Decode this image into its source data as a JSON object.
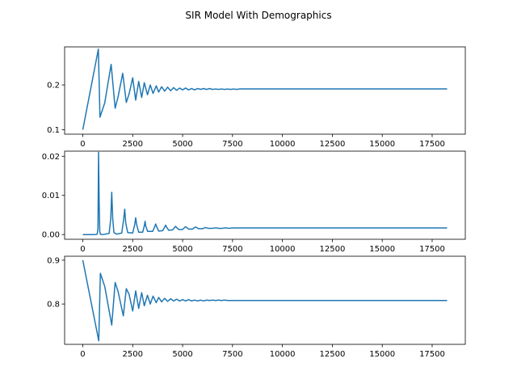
{
  "chart_data": {
    "title": "SIR Model With Demographics",
    "type": "line",
    "line_color": "#1f77b4",
    "panels": [
      {
        "type": "line",
        "series_label": "",
        "ylim": [
          0.09,
          0.285
        ],
        "xlim": [
          -910,
          19160
        ],
        "yticks": [
          0.1,
          0.2
        ],
        "ytick_labels": [
          "0.1",
          "0.2"
        ],
        "xticks": [
          0,
          2500,
          5000,
          7500,
          10000,
          12500,
          15000,
          17500
        ],
        "xtick_labels": [
          "0",
          "2500",
          "5000",
          "7500",
          "10000",
          "12500",
          "15000",
          "17500"
        ],
        "x": [
          0,
          780,
          860,
          1100,
          1420,
          1620,
          1760,
          2000,
          2180,
          2320,
          2500,
          2650,
          2800,
          2950,
          3080,
          3240,
          3380,
          3520,
          3680,
          3800,
          3950,
          4100,
          4250,
          4400,
          4550,
          4700,
          4850,
          5000,
          5150,
          5300,
          5450,
          5600,
          5750,
          5900,
          6050,
          6200,
          6350,
          6500,
          6650,
          6800,
          6950,
          7100,
          7250,
          7400,
          7550,
          7700,
          7850,
          8000,
          8200,
          8500,
          9000,
          10000,
          12500,
          15000,
          18250
        ],
        "y": [
          0.1,
          0.28,
          0.128,
          0.16,
          0.246,
          0.148,
          0.172,
          0.226,
          0.161,
          0.18,
          0.216,
          0.166,
          0.208,
          0.172,
          0.205,
          0.178,
          0.2,
          0.181,
          0.198,
          0.184,
          0.196,
          0.186,
          0.195,
          0.187,
          0.194,
          0.188,
          0.193,
          0.189,
          0.193,
          0.189,
          0.192,
          0.189,
          0.192,
          0.19,
          0.192,
          0.19,
          0.192,
          0.19,
          0.191,
          0.19,
          0.191,
          0.19,
          0.191,
          0.19,
          0.191,
          0.19,
          0.191,
          0.191,
          0.191,
          0.191,
          0.191,
          0.191,
          0.191,
          0.191,
          0.191
        ]
      },
      {
        "type": "line",
        "series_label": "",
        "ylim": [
          -0.0012,
          0.0213
        ],
        "xlim": [
          -910,
          19160
        ],
        "yticks": [
          0.0,
          0.01,
          0.02
        ],
        "ytick_labels": [
          "0.00",
          "0.01",
          "0.02"
        ],
        "xticks": [
          0,
          2500,
          5000,
          7500,
          10000,
          12500,
          15000,
          17500
        ],
        "xtick_labels": [
          "0",
          "2500",
          "5000",
          "7500",
          "10000",
          "12500",
          "15000",
          "17500"
        ],
        "x": [
          0,
          600,
          720,
          760,
          790,
          820,
          850,
          880,
          1000,
          1320,
          1400,
          1450,
          1500,
          1560,
          1700,
          1950,
          2050,
          2100,
          2150,
          2250,
          2500,
          2600,
          2650,
          2700,
          2800,
          3000,
          3080,
          3120,
          3150,
          3250,
          3500,
          3600,
          3650,
          3700,
          3800,
          4000,
          4100,
          4150,
          4200,
          4300,
          4500,
          4600,
          4650,
          4700,
          4800,
          5000,
          5100,
          5150,
          5200,
          5300,
          5500,
          5600,
          5650,
          5700,
          5800,
          6000,
          6100,
          6150,
          6200,
          6300,
          6500,
          6600,
          6700,
          6800,
          7000,
          7100,
          7200,
          7300,
          7500,
          8000,
          9000,
          10000,
          12500,
          15000,
          18250
        ],
        "y": [
          0.0,
          0.0,
          0.0001,
          0.0015,
          0.021,
          0.008,
          0.0008,
          0.0001,
          0.0,
          0.0003,
          0.004,
          0.0108,
          0.004,
          0.0005,
          0.0001,
          0.0004,
          0.004,
          0.0065,
          0.003,
          0.0005,
          0.0004,
          0.0025,
          0.0043,
          0.0025,
          0.0006,
          0.0006,
          0.0022,
          0.0034,
          0.0022,
          0.0008,
          0.0008,
          0.002,
          0.0027,
          0.002,
          0.0009,
          0.001,
          0.0019,
          0.0024,
          0.0019,
          0.0011,
          0.0012,
          0.0018,
          0.0021,
          0.0018,
          0.0013,
          0.0013,
          0.0018,
          0.002,
          0.0018,
          0.0014,
          0.0014,
          0.0018,
          0.0019,
          0.0018,
          0.0015,
          0.0015,
          0.0017,
          0.0018,
          0.0017,
          0.0016,
          0.0016,
          0.0017,
          0.0017,
          0.0016,
          0.0016,
          0.0017,
          0.0017,
          0.0016,
          0.0017,
          0.0017,
          0.0017,
          0.0017,
          0.0017,
          0.0017,
          0.0017
        ]
      },
      {
        "type": "line",
        "series_label": "",
        "ylim": [
          0.708,
          0.909
        ],
        "xlim": [
          -910,
          19160
        ],
        "yticks": [
          0.8,
          0.9
        ],
        "ytick_labels": [
          "0.8",
          "0.9"
        ],
        "xticks": [
          0,
          2500,
          5000,
          7500,
          10000,
          12500,
          15000,
          17500
        ],
        "xtick_labels": [
          "0",
          "2500",
          "5000",
          "7500",
          "10000",
          "12500",
          "15000",
          "17500"
        ],
        "x": [
          0,
          800,
          880,
          1100,
          1450,
          1620,
          1760,
          2030,
          2180,
          2320,
          2500,
          2650,
          2800,
          2950,
          3080,
          3240,
          3380,
          3520,
          3680,
          3800,
          3950,
          4100,
          4250,
          4400,
          4550,
          4700,
          4850,
          5000,
          5150,
          5300,
          5450,
          5600,
          5750,
          5900,
          6050,
          6200,
          6350,
          6500,
          6650,
          6800,
          6950,
          7100,
          7250,
          7400,
          7550,
          7700,
          7850,
          8000,
          8200,
          8500,
          9000,
          10000,
          12500,
          15000,
          18250
        ],
        "y": [
          0.9,
          0.716,
          0.87,
          0.84,
          0.752,
          0.849,
          0.83,
          0.773,
          0.835,
          0.822,
          0.784,
          0.83,
          0.79,
          0.826,
          0.796,
          0.82,
          0.8,
          0.818,
          0.803,
          0.815,
          0.805,
          0.813,
          0.806,
          0.812,
          0.807,
          0.811,
          0.807,
          0.81,
          0.807,
          0.81,
          0.807,
          0.809,
          0.807,
          0.809,
          0.807,
          0.809,
          0.808,
          0.809,
          0.808,
          0.809,
          0.808,
          0.809,
          0.808,
          0.808,
          0.808,
          0.808,
          0.808,
          0.808,
          0.808,
          0.808,
          0.808,
          0.808,
          0.808,
          0.808,
          0.808
        ]
      }
    ]
  }
}
